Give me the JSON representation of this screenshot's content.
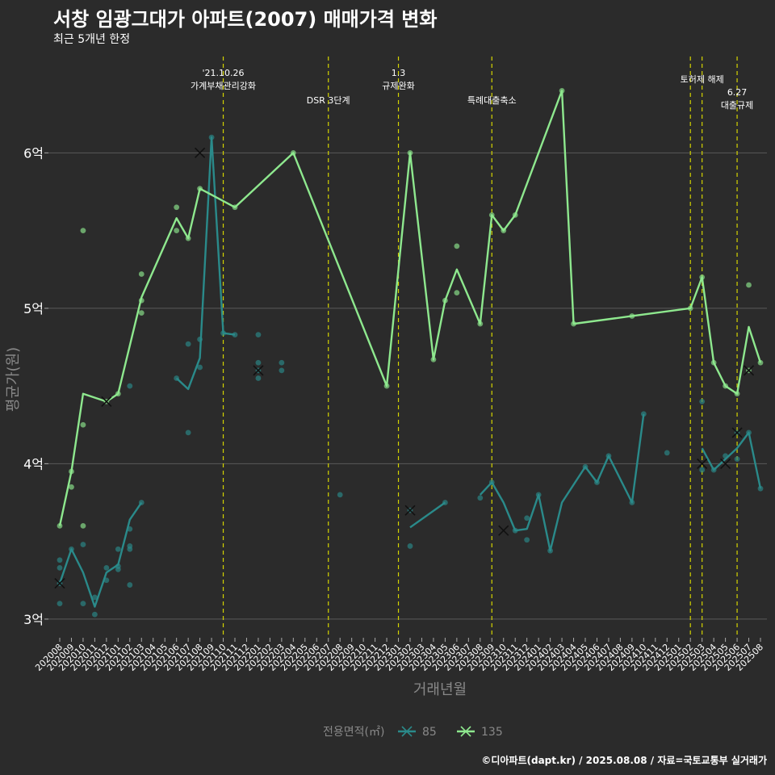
{
  "title": "서창 임광그대가 아파트(2007) 매매가격 변화",
  "subtitle": "최근 5개년 한정",
  "caption": "©디아파트(dapt.kr) / 2025.08.08 / 자료=국토교통부 실거래가",
  "colors": {
    "background": "#2b2b2b",
    "grid": "#5a5a5a",
    "event_line": "#d4d400",
    "series_85": "#2a8a8a",
    "series_135": "#8ee88e",
    "axis_text": "#888888"
  },
  "chart_data": {
    "type": "line",
    "xlabel": "거래년월",
    "ylabel": "평균가(원)",
    "x_categories": [
      "202008",
      "202009",
      "202010",
      "202011",
      "202012",
      "202101",
      "202102",
      "202103",
      "202104",
      "202105",
      "202106",
      "202107",
      "202108",
      "202109",
      "202110",
      "202111",
      "202112",
      "202201",
      "202202",
      "202203",
      "202204",
      "202205",
      "202206",
      "202207",
      "202208",
      "202209",
      "202210",
      "202211",
      "202212",
      "202301",
      "202302",
      "202303",
      "202304",
      "202305",
      "202306",
      "202307",
      "202308",
      "202309",
      "202310",
      "202311",
      "202312",
      "202401",
      "202402",
      "202403",
      "202404",
      "202405",
      "202406",
      "202407",
      "202408",
      "202409",
      "202410",
      "202411",
      "202412",
      "202501",
      "202502",
      "202503",
      "202504",
      "202505",
      "202506",
      "202507",
      "202508"
    ],
    "y_ticks": [
      {
        "value": 3,
        "label": "3억"
      },
      {
        "value": 4,
        "label": "4억"
      },
      {
        "value": 5,
        "label": "5억"
      },
      {
        "value": 6,
        "label": "6억"
      }
    ],
    "ylim": [
      2.88,
      6.62
    ],
    "grid": true,
    "legend": {
      "title": "전용면적(㎡)",
      "position": "bottom"
    },
    "series": [
      {
        "name": "85",
        "color": "#2a8a8a",
        "line": [
          [
            "202008",
            3.23
          ],
          [
            "202009",
            3.45
          ],
          [
            "202010",
            3.3
          ],
          [
            "202011",
            3.08
          ],
          [
            "202012",
            3.3
          ],
          [
            "202101",
            3.35
          ],
          [
            "202102",
            3.64
          ],
          [
            "202103",
            3.75
          ],
          null,
          [
            "202106",
            4.55
          ],
          [
            "202107",
            4.48
          ],
          [
            "202108",
            4.68
          ],
          [
            "202109",
            6.1
          ],
          [
            "202110",
            4.84
          ],
          [
            "202111",
            4.83
          ],
          null,
          [
            "202302",
            3.59
          ],
          [
            "202305",
            3.75
          ],
          null,
          [
            "202308",
            3.8
          ],
          [
            "202309",
            3.88
          ],
          [
            "202310",
            3.75
          ],
          [
            "202311",
            3.57
          ],
          [
            "202312",
            3.58
          ],
          [
            "202401",
            3.8
          ],
          [
            "202402",
            3.44
          ],
          [
            "202403",
            3.75
          ],
          [
            "202405",
            3.98
          ],
          [
            "202406",
            3.88
          ],
          [
            "202407",
            4.05
          ],
          [
            "202409",
            3.75
          ],
          [
            "202410",
            4.32
          ],
          null,
          [
            "202503",
            4.1
          ],
          [
            "202504",
            3.96
          ],
          [
            "202505",
            4.03
          ],
          [
            "202506",
            4.1
          ],
          [
            "202507",
            4.2
          ],
          [
            "202508",
            3.84
          ]
        ],
        "points": [
          [
            "202008",
            3.1
          ],
          [
            "202008",
            3.23
          ],
          [
            "202008",
            3.33
          ],
          [
            "202008",
            3.38
          ],
          [
            "202009",
            3.45
          ],
          [
            "202010",
            3.1
          ],
          [
            "202010",
            3.48
          ],
          [
            "202011",
            3.03
          ],
          [
            "202011",
            3.14
          ],
          [
            "202012",
            3.25
          ],
          [
            "202012",
            3.33
          ],
          [
            "202101",
            3.32
          ],
          [
            "202101",
            3.34
          ],
          [
            "202101",
            3.45
          ],
          [
            "202102",
            3.22
          ],
          [
            "202102",
            3.45
          ],
          [
            "202102",
            3.47
          ],
          [
            "202102",
            3.58
          ],
          [
            "202102",
            4.5
          ],
          [
            "202103",
            3.75
          ],
          [
            "202106",
            4.55
          ],
          [
            "202107",
            4.2
          ],
          [
            "202107",
            4.77
          ],
          [
            "202108",
            4.62
          ],
          [
            "202108",
            4.8
          ],
          [
            "202109",
            6.1
          ],
          [
            "202110",
            4.84
          ],
          [
            "202111",
            4.83
          ],
          [
            "202201",
            4.55
          ],
          [
            "202201",
            4.6
          ],
          [
            "202201",
            4.65
          ],
          [
            "202201",
            4.83
          ],
          [
            "202203",
            4.6
          ],
          [
            "202203",
            4.65
          ],
          [
            "202208",
            3.8
          ],
          [
            "202302",
            3.47
          ],
          [
            "202302",
            3.7
          ],
          [
            "202305",
            3.75
          ],
          [
            "202308",
            3.78
          ],
          [
            "202309",
            3.88
          ],
          [
            "202311",
            3.57
          ],
          [
            "202312",
            3.51
          ],
          [
            "202312",
            3.65
          ],
          [
            "202401",
            3.8
          ],
          [
            "202402",
            3.44
          ],
          [
            "202405",
            3.98
          ],
          [
            "202406",
            3.88
          ],
          [
            "202407",
            4.05
          ],
          [
            "202409",
            3.75
          ],
          [
            "202410",
            4.32
          ],
          [
            "202412",
            4.07
          ],
          [
            "202503",
            3.96
          ],
          [
            "202503",
            4.4
          ],
          [
            "202504",
            3.96
          ],
          [
            "202505",
            4.05
          ],
          [
            "202506",
            4.03
          ],
          [
            "202506",
            4.2
          ],
          [
            "202507",
            4.2
          ],
          [
            "202508",
            3.84
          ]
        ],
        "cancelled": [
          [
            "202008",
            3.23
          ],
          [
            "202201",
            4.6
          ],
          [
            "202302",
            3.7
          ],
          [
            "202310",
            3.57
          ],
          [
            "202503",
            4.0
          ],
          [
            "202505",
            4.0
          ],
          [
            "202506",
            4.2
          ]
        ]
      },
      {
        "name": "135",
        "color": "#8ee88e",
        "line": [
          [
            "202008",
            3.6
          ],
          [
            "202009",
            3.95
          ],
          [
            "202010",
            4.45
          ],
          [
            "202012",
            4.4
          ],
          [
            "202101",
            4.45
          ],
          [
            "202103",
            5.07
          ],
          [
            "202106",
            5.58
          ],
          [
            "202107",
            5.45
          ],
          [
            "202108",
            5.77
          ],
          [
            "202111",
            5.65
          ],
          [
            "202204",
            6.0
          ],
          [
            "202212",
            4.5
          ],
          [
            "202302",
            6.0
          ],
          [
            "202304",
            4.67
          ],
          [
            "202305",
            5.05
          ],
          [
            "202306",
            5.25
          ],
          [
            "202308",
            4.9
          ],
          [
            "202309",
            5.6
          ],
          [
            "202310",
            5.5
          ],
          [
            "202311",
            5.6
          ],
          [
            "202403",
            6.4
          ],
          [
            "202404",
            4.9
          ],
          [
            "202409",
            4.95
          ],
          [
            "202502",
            5.0
          ],
          [
            "202503",
            5.2
          ],
          [
            "202504",
            4.65
          ],
          [
            "202505",
            4.5
          ],
          [
            "202506",
            4.45
          ],
          [
            "202507",
            4.88
          ],
          [
            "202508",
            4.65
          ]
        ],
        "points": [
          [
            "202008",
            3.6
          ],
          [
            "202009",
            3.85
          ],
          [
            "202009",
            3.95
          ],
          [
            "202010",
            3.6
          ],
          [
            "202010",
            4.25
          ],
          [
            "202010",
            5.5
          ],
          [
            "202012",
            4.4
          ],
          [
            "202101",
            4.45
          ],
          [
            "202103",
            4.97
          ],
          [
            "202103",
            5.05
          ],
          [
            "202103",
            5.22
          ],
          [
            "202106",
            5.5
          ],
          [
            "202106",
            5.65
          ],
          [
            "202107",
            5.45
          ],
          [
            "202108",
            5.77
          ],
          [
            "202111",
            5.65
          ],
          [
            "202204",
            6.0
          ],
          [
            "202212",
            4.5
          ],
          [
            "202302",
            6.0
          ],
          [
            "202304",
            4.67
          ],
          [
            "202305",
            5.05
          ],
          [
            "202306",
            5.1
          ],
          [
            "202306",
            5.4
          ],
          [
            "202308",
            4.9
          ],
          [
            "202309",
            5.6
          ],
          [
            "202310",
            5.5
          ],
          [
            "202311",
            5.6
          ],
          [
            "202403",
            6.4
          ],
          [
            "202404",
            4.9
          ],
          [
            "202409",
            4.95
          ],
          [
            "202502",
            5.0
          ],
          [
            "202503",
            5.2
          ],
          [
            "202504",
            4.65
          ],
          [
            "202505",
            4.5
          ],
          [
            "202506",
            4.45
          ],
          [
            "202507",
            4.6
          ],
          [
            "202507",
            5.15
          ],
          [
            "202508",
            4.65
          ]
        ],
        "cancelled": [
          [
            "202012",
            4.4
          ],
          [
            "202108",
            6.0
          ],
          [
            "202507",
            4.6
          ]
        ]
      }
    ],
    "events": [
      {
        "x": "202110",
        "lines": [
          "'21.10.26",
          "가계부채관리강화"
        ],
        "level": 0
      },
      {
        "x": "202207",
        "lines": [
          "DSR 3단계"
        ],
        "level": 1
      },
      {
        "x": "202301",
        "lines": [
          "1.3",
          "규제완화"
        ],
        "level": 0
      },
      {
        "x": "202309",
        "lines": [
          "특례대출축소"
        ],
        "level": 1
      },
      {
        "x": "202502",
        "lines": [],
        "level": 0
      },
      {
        "x": "202503",
        "lines": [
          "토허제 해제"
        ],
        "level": 0.5
      },
      {
        "x": "202506",
        "lines": [
          "6.27",
          "대출규제"
        ],
        "level": 1.5
      }
    ]
  }
}
